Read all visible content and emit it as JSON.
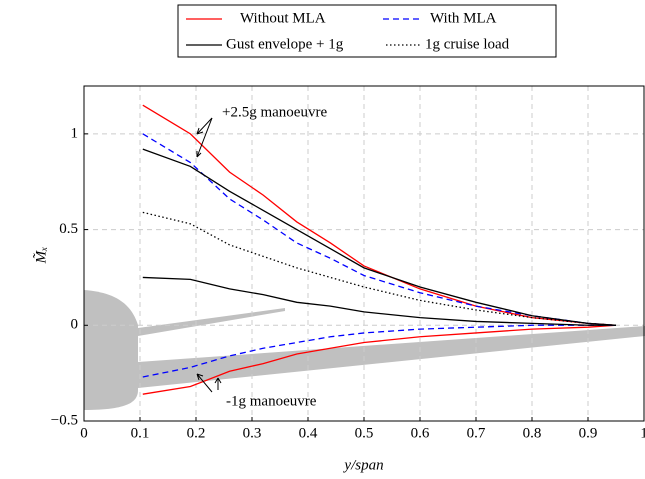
{
  "chart_data": {
    "type": "line",
    "xlabel": "y/span",
    "ylabel": "M̃ₓ",
    "x": [
      0.105,
      0.19,
      0.26,
      0.32,
      0.38,
      0.44,
      0.5,
      0.6,
      0.7,
      0.8,
      0.9,
      0.95
    ],
    "series": [
      {
        "name": "Without MLA",
        "color": "#ff0000",
        "dash": "solid",
        "values": [
          1.15,
          1.0,
          0.8,
          0.68,
          0.54,
          0.43,
          0.31,
          0.19,
          0.1,
          0.04,
          0.01,
          0
        ],
        "values_lower": [
          -0.36,
          -0.32,
          -0.24,
          -0.2,
          -0.15,
          -0.12,
          -0.09,
          -0.06,
          -0.04,
          -0.02,
          -0.01,
          0
        ]
      },
      {
        "name": "With MLA",
        "color": "#0000ff",
        "dash": "dashed",
        "values": [
          1.0,
          0.85,
          0.66,
          0.55,
          0.43,
          0.35,
          0.26,
          0.17,
          0.1,
          0.05,
          0.01,
          0
        ],
        "values_lower": [
          -0.27,
          -0.22,
          -0.16,
          -0.12,
          -0.09,
          -0.06,
          -0.04,
          -0.02,
          -0.01,
          0,
          0,
          0
        ]
      },
      {
        "name": "Gust envelope + 1g",
        "color": "#000000",
        "dash": "solid",
        "values": [
          0.92,
          0.83,
          0.7,
          0.6,
          0.5,
          0.4,
          0.3,
          0.2,
          0.12,
          0.05,
          0.01,
          0
        ],
        "values_lower": [
          0.25,
          0.24,
          0.19,
          0.16,
          0.12,
          0.1,
          0.07,
          0.04,
          0.02,
          0.01,
          0,
          0
        ]
      },
      {
        "name": "1g cruise load",
        "color": "#000000",
        "dash": "dotted",
        "values": [
          0.59,
          0.53,
          0.42,
          0.36,
          0.3,
          0.25,
          0.2,
          0.13,
          0.08,
          0.04,
          0.01,
          0
        ]
      }
    ],
    "annotations": [
      "+2.5g manoeuvre",
      "-1g manoeuvre"
    ],
    "xlim": [
      0,
      1
    ],
    "xticks": [
      0,
      0.1,
      0.2,
      0.3,
      0.4,
      0.5,
      0.6,
      0.7,
      0.8,
      0.9,
      1
    ],
    "ylim": [
      -0.5,
      1.25
    ],
    "yticks": [
      {
        "value": -0.5,
        "label": "−0.5"
      },
      0,
      0.5,
      1
    ],
    "grid": true
  }
}
